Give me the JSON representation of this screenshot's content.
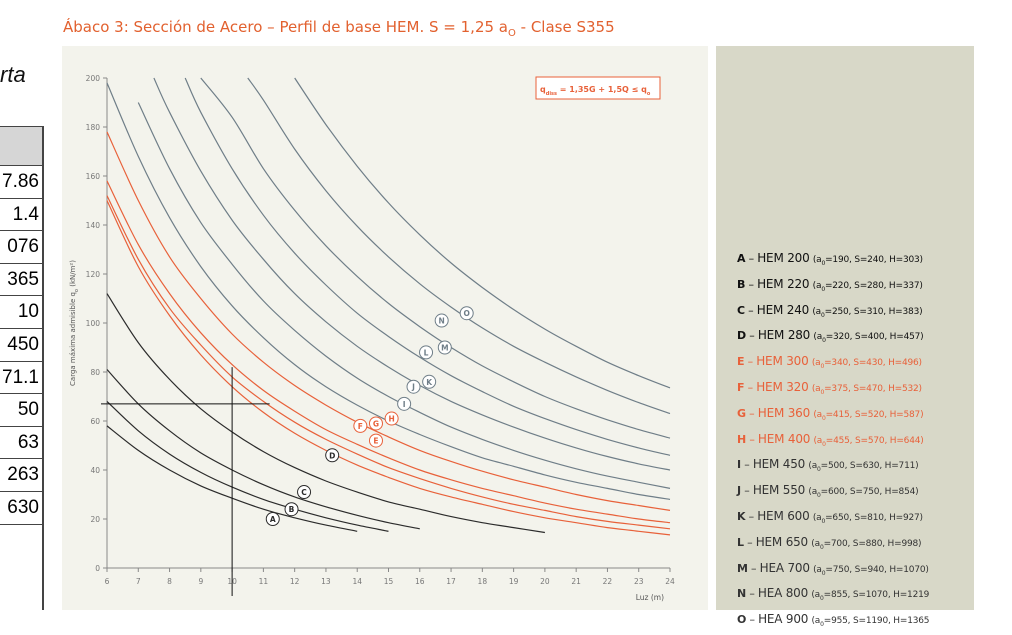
{
  "side": {
    "partial_text": "rta",
    "table_cells": [
      "7.86",
      "1.4",
      "076",
      "365",
      "10",
      "450",
      "71.1",
      "50",
      "63",
      "263",
      "630"
    ]
  },
  "colors": {
    "title": "#e2612f",
    "black_series": "#2b2b2b",
    "orange_series": "#e8613a",
    "gray_series": "#6f7e88",
    "background": "#f3f3ec",
    "legend_bg": "#d8d8c8"
  },
  "chart_data": {
    "type": "line",
    "title": "Ábaco 3: Sección de Acero – Perfil de base HEM. S = 1,25 a",
    "title_sub": "O",
    "title_tail": " - Clase S355",
    "formula": "q",
    "formula_sub": "diss",
    "formula_tail": " = 1,35G + 1,5Q ≤ q",
    "formula_sub2": "o",
    "ylabel": "Carga máxima admisible  q",
    "ylabel_sub": "o",
    "ylabel_tail": " (kN/m²)",
    "xlabel": "Luz (m)",
    "xlim": [
      6,
      24
    ],
    "ylim": [
      0,
      200
    ],
    "xticks": [
      6,
      7,
      8,
      9,
      10,
      11,
      12,
      13,
      14,
      15,
      16,
      17,
      18,
      19,
      20,
      21,
      22,
      23,
      24
    ],
    "yticks": [
      0,
      20,
      40,
      60,
      80,
      100,
      120,
      140,
      160,
      180,
      200
    ],
    "ytick_labels": [
      "0",
      "20",
      "40",
      "60",
      "80",
      "100",
      "120",
      "140",
      "160",
      "180",
      "200"
    ],
    "crosshair": {
      "x": 10,
      "y": 67
    },
    "series": [
      {
        "name": "A",
        "group": "black",
        "x": [
          6,
          7,
          8,
          9,
          10,
          11,
          12,
          13,
          14
        ],
        "y": [
          58,
          48,
          40,
          33.5,
          28.5,
          24,
          20.5,
          17.5,
          15
        ],
        "label_at": [
          11.3,
          20
        ]
      },
      {
        "name": "B",
        "group": "black",
        "x": [
          6,
          7,
          8,
          9,
          10,
          11,
          12,
          13,
          14,
          15
        ],
        "y": [
          68,
          56,
          46.5,
          39,
          33,
          28,
          24,
          20.5,
          17.5,
          15
        ],
        "label_at": [
          11.9,
          24
        ]
      },
      {
        "name": "C",
        "group": "black",
        "x": [
          6,
          7,
          8,
          9,
          10,
          11,
          12,
          13,
          14,
          15,
          16
        ],
        "y": [
          81,
          67,
          56,
          47,
          40,
          34,
          29,
          25,
          21.5,
          18.5,
          16
        ],
        "label_at": [
          12.3,
          31
        ]
      },
      {
        "name": "D",
        "group": "black",
        "x": [
          6,
          7,
          8,
          9,
          10,
          11,
          12,
          13,
          14,
          15,
          16,
          17,
          18,
          19,
          20
        ],
        "y": [
          112,
          92,
          77,
          65,
          55.5,
          47.5,
          41,
          35.5,
          31,
          27,
          24,
          21,
          18.5,
          16.5,
          14.5
        ],
        "label_at": [
          13.2,
          46
        ]
      },
      {
        "name": "E",
        "group": "orange",
        "x": [
          6,
          7,
          8,
          9,
          10,
          11,
          12,
          13,
          14,
          15,
          16,
          17,
          18,
          19,
          20,
          21,
          22,
          23,
          24
        ],
        "y": [
          150,
          123,
          103,
          87,
          74,
          63.5,
          55,
          48,
          42,
          37,
          32.5,
          29,
          26,
          23,
          20.5,
          18.5,
          16.5,
          15,
          13.5
        ],
        "label_at": [
          14.6,
          52
        ]
      },
      {
        "name": "F",
        "group": "orange",
        "x": [
          6,
          7,
          8,
          9,
          10,
          11,
          12,
          13,
          14,
          15,
          16,
          17,
          18,
          19,
          20,
          21,
          22,
          23,
          24
        ],
        "y": [
          152,
          126,
          106,
          91,
          78,
          68,
          59.5,
          52.5,
          46.5,
          41,
          36.5,
          32.5,
          29,
          26,
          23.5,
          21,
          19,
          17.5,
          16
        ],
        "label_at": [
          14.1,
          58
        ]
      },
      {
        "name": "G",
        "group": "orange",
        "x": [
          6,
          7,
          8,
          9,
          10,
          11,
          12,
          13,
          14,
          15,
          16,
          17,
          18,
          19,
          20,
          21,
          22,
          23,
          24
        ],
        "y": [
          158,
          132,
          112,
          96,
          83,
          72.5,
          64,
          56.5,
          50.5,
          45,
          40,
          36,
          32.5,
          29.5,
          26.5,
          24,
          22,
          20,
          18.5
        ],
        "label_at": [
          14.6,
          59
        ]
      },
      {
        "name": "H",
        "group": "orange",
        "x": [
          6,
          7,
          8,
          9,
          10,
          11,
          12,
          13,
          14,
          15,
          16,
          17,
          18,
          19,
          20,
          21,
          22,
          23,
          24
        ],
        "y": [
          178,
          150,
          127,
          110,
          95.5,
          84,
          74.5,
          66.5,
          59.5,
          53.5,
          48,
          43.5,
          39.5,
          36,
          33,
          30,
          27.5,
          25.5,
          23.5
        ],
        "label_at": [
          15.1,
          61
        ]
      },
      {
        "name": "I",
        "group": "gray",
        "x": [
          6,
          7,
          8,
          9,
          10,
          11,
          12,
          13,
          14,
          15,
          16,
          17,
          18,
          19,
          20,
          21,
          22,
          23,
          24
        ],
        "y": [
          198,
          168,
          143,
          123,
          107,
          94,
          83,
          74,
          66.5,
          60,
          54.5,
          49.5,
          45,
          41.5,
          38,
          35,
          32.5,
          30,
          28
        ],
        "label_at": [
          15.5,
          67
        ]
      },
      {
        "name": "J",
        "group": "gray",
        "x": [
          7,
          8,
          9,
          10,
          11,
          12,
          13,
          14,
          15,
          16,
          17,
          18,
          19,
          20,
          21,
          22,
          23,
          24
        ],
        "y": [
          190,
          163,
          141,
          124,
          109,
          97,
          86.5,
          77.5,
          70,
          63.5,
          57.5,
          52.5,
          48,
          44,
          40.5,
          37.5,
          35,
          32.5
        ],
        "label_at": [
          15.8,
          74
        ]
      },
      {
        "name": "K",
        "group": "gray",
        "x": [
          7.5,
          8,
          9,
          10,
          11,
          12,
          13,
          14,
          15,
          16,
          17,
          18,
          19,
          20,
          21,
          22,
          23,
          24
        ],
        "y": [
          200,
          186,
          162,
          142,
          126,
          112,
          100.5,
          90.5,
          82,
          74.5,
          68,
          62.5,
          57.5,
          53,
          49,
          45.5,
          42.5,
          40
        ],
        "label_at": [
          16.3,
          76
        ]
      },
      {
        "name": "L",
        "group": "gray",
        "x": [
          8.5,
          9,
          10,
          11,
          12,
          13,
          14,
          15,
          16,
          17,
          18,
          19,
          20,
          21,
          22,
          23,
          24
        ],
        "y": [
          200,
          186,
          163,
          144,
          128.5,
          115.5,
          104,
          94.5,
          86,
          78.5,
          72,
          66,
          61,
          56.5,
          52.5,
          49,
          46
        ],
        "label_at": [
          16.2,
          88
        ]
      },
      {
        "name": "M",
        "group": "gray",
        "x": [
          9,
          10,
          11,
          12,
          13,
          14,
          15,
          16,
          17,
          18,
          19,
          20,
          21,
          22,
          23,
          24
        ],
        "y": [
          200,
          184,
          163,
          146,
          131.5,
          119,
          108,
          98.5,
          90,
          82.5,
          76,
          70,
          65,
          60.5,
          56.5,
          53
        ],
        "label_at": [
          16.8,
          90
        ]
      },
      {
        "name": "N",
        "group": "gray",
        "x": [
          10.5,
          11,
          12,
          13,
          14,
          15,
          16,
          17,
          18,
          19,
          20,
          21,
          22,
          23,
          24
        ],
        "y": [
          200,
          191,
          171,
          154,
          139.5,
          127,
          116,
          106.5,
          98,
          90.5,
          84,
          78,
          72.5,
          67.5,
          63
        ],
        "label_at": [
          16.7,
          101
        ]
      },
      {
        "name": "O",
        "group": "gray",
        "x": [
          12,
          13,
          14,
          15,
          16,
          17,
          18,
          19,
          20,
          21,
          22,
          23,
          24
        ],
        "y": [
          200,
          181,
          164,
          149,
          136,
          124.5,
          114.5,
          105.5,
          97.5,
          90.5,
          84,
          78.5,
          73.5
        ],
        "label_at": [
          17.5,
          104
        ]
      }
    ]
  },
  "legend": [
    {
      "letter": "A",
      "name": "HEM 200",
      "params": "(a",
      "sub": "0",
      "rest": "=190, S=240, H=303)",
      "group": "black"
    },
    {
      "letter": "B",
      "name": "HEM 220",
      "params": "(a",
      "sub": "0",
      "rest": "=220, S=280, H=337)",
      "group": "black"
    },
    {
      "letter": "C",
      "name": "HEM 240",
      "params": "(a",
      "sub": "0",
      "rest": "=250, S=310, H=383)",
      "group": "black"
    },
    {
      "letter": "D",
      "name": "HEM 280",
      "params": "(a",
      "sub": "0",
      "rest": "=320, S=400, H=457)",
      "group": "black"
    },
    {
      "letter": "E",
      "name": "HEM 300",
      "params": "(a",
      "sub": "0",
      "rest": "=340, S=430, H=496)",
      "group": "orange"
    },
    {
      "letter": "F",
      "name": "HEM 320",
      "params": "(a",
      "sub": "0",
      "rest": "=375, S=470, H=532)",
      "group": "orange"
    },
    {
      "letter": "G",
      "name": "HEM 360",
      "params": "(a",
      "sub": "0",
      "rest": "=415, S=520, H=587)",
      "group": "orange"
    },
    {
      "letter": "H",
      "name": "HEM 400",
      "params": "(a",
      "sub": "0",
      "rest": "=455, S=570, H=644)",
      "group": "orange"
    },
    {
      "letter": "I",
      "name": "HEM 450",
      "params": "(a",
      "sub": "0",
      "rest": "=500, S=630, H=711)",
      "group": "gray"
    },
    {
      "letter": "J",
      "name": "HEM 550",
      "params": "(a",
      "sub": "0",
      "rest": "=600, S=750, H=854)",
      "group": "gray"
    },
    {
      "letter": "K",
      "name": "HEM 600",
      "params": "(a",
      "sub": "0",
      "rest": "=650, S=810, H=927)",
      "group": "gray"
    },
    {
      "letter": "L",
      "name": "HEM 650",
      "params": "(a",
      "sub": "0",
      "rest": "=700, S=880, H=998)",
      "group": "gray"
    },
    {
      "letter": "M",
      "name": "HEA 700",
      "params": "(a",
      "sub": "0",
      "rest": "=750, S=940, H=1070)",
      "group": "gray"
    },
    {
      "letter": "N",
      "name": "HEA 800",
      "params": "(a",
      "sub": "0",
      "rest": "=855, S=1070, H=1219",
      "group": "gray"
    },
    {
      "letter": "O",
      "name": "HEA 900",
      "params": "(a",
      "sub": "0",
      "rest": "=955, S=1190, H=1365",
      "group": "gray"
    }
  ]
}
